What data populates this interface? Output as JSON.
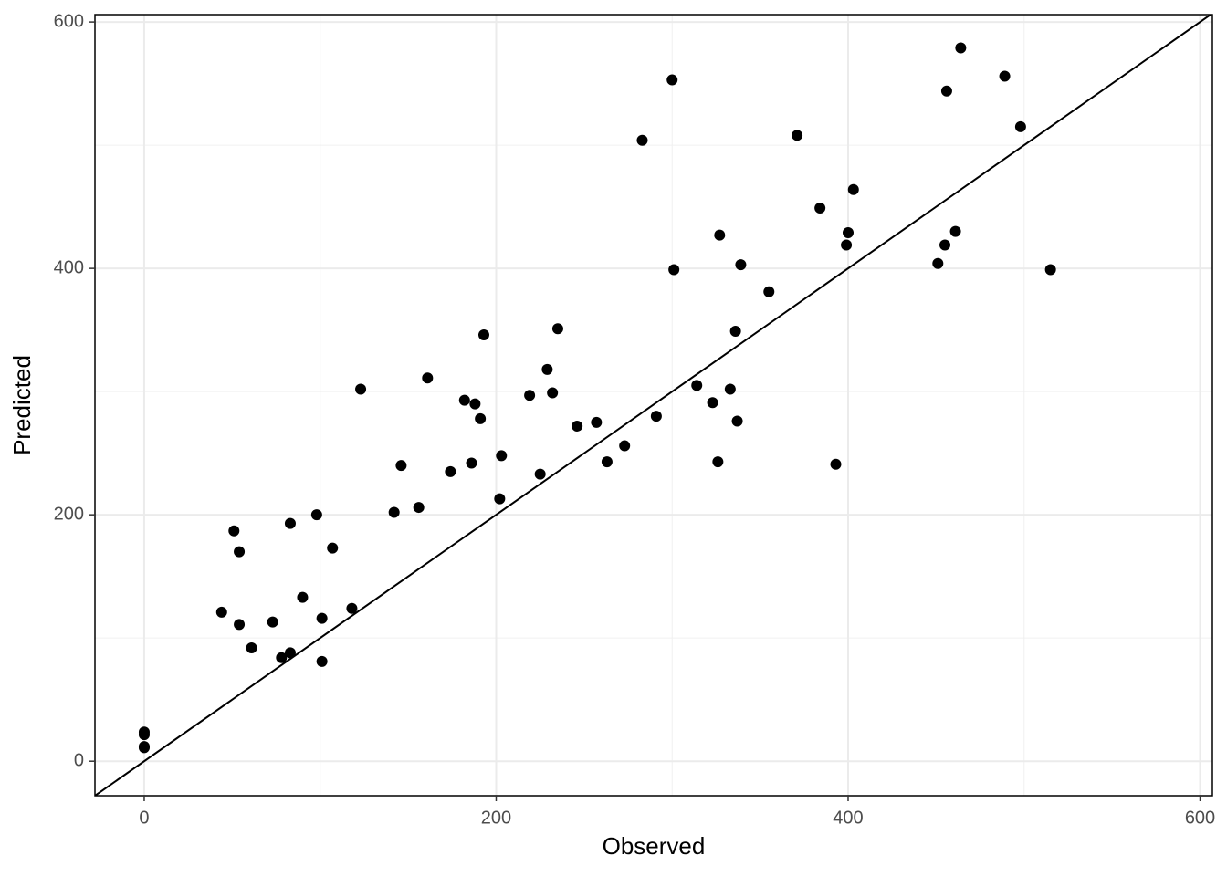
{
  "chart_data": {
    "type": "scatter",
    "x_label": "Observed",
    "y_label": "Predicted",
    "x": [
      0,
      0,
      0,
      0,
      44,
      51,
      54,
      54,
      61,
      73,
      78,
      83,
      83,
      90,
      98,
      101,
      101,
      107,
      118,
      123,
      142,
      146,
      156,
      161,
      174,
      182,
      186,
      188,
      191,
      193,
      202,
      203,
      219,
      225,
      229,
      232,
      235,
      246,
      257,
      263,
      273,
      283,
      291,
      300,
      301,
      314,
      323,
      326,
      327,
      333,
      336,
      337,
      339,
      355,
      371,
      384,
      393,
      399,
      400,
      403,
      451,
      455,
      456,
      461,
      464,
      489,
      498,
      515
    ],
    "values": [
      23.7,
      21.5,
      11.9,
      11,
      121,
      187,
      170,
      111,
      92,
      113,
      84,
      88,
      193,
      133,
      200,
      116,
      81,
      173,
      124,
      302,
      202,
      240,
      206,
      311,
      235,
      293,
      242,
      290,
      278,
      346,
      213,
      248,
      297,
      233,
      318,
      299,
      351,
      272,
      275,
      243,
      256,
      504,
      280,
      553,
      399,
      305,
      291,
      243,
      427,
      302,
      349,
      276,
      403,
      381,
      508,
      449,
      241,
      419,
      429,
      464,
      404,
      419,
      544,
      430,
      579,
      556,
      515,
      399
    ],
    "color": "#000000",
    "xlim": [
      -28,
      607
    ],
    "ylim": [
      -28,
      606
    ],
    "xticks": [
      0,
      200,
      400,
      600
    ],
    "yticks": [
      0,
      200,
      400,
      600
    ],
    "minor_xticks": [
      100,
      300,
      500
    ],
    "minor_yticks": [
      100,
      300,
      500
    ],
    "grid": true,
    "reference_line": {
      "slope": 1,
      "intercept": 0
    }
  }
}
